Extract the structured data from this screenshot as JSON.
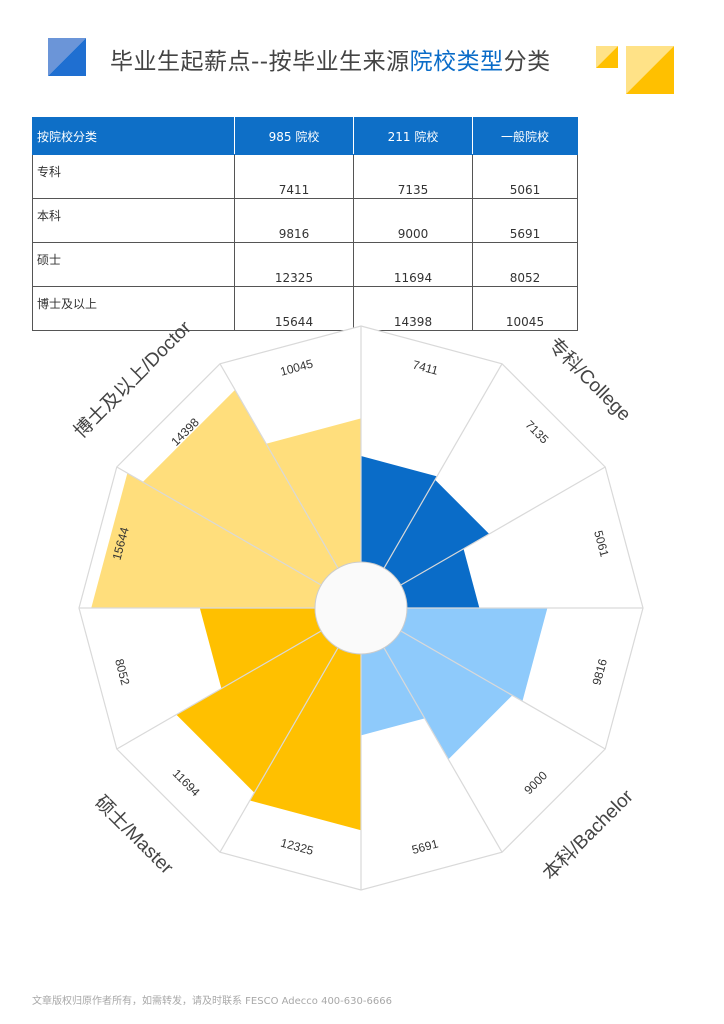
{
  "header": {
    "title_pre": "毕业生起薪点--按毕业生来源",
    "title_highlight": "院校类型",
    "title_post": "分类"
  },
  "colors": {
    "table_header": "#0e6fc7",
    "highlight_text": "#0a6cc8",
    "college": "#0a6cc8",
    "bachelor": "#8ecafb",
    "master": "#ffc000",
    "doctor": "#ffde7c",
    "deco_blue": "#1f6fd1",
    "deco_yellow": "#ffc000"
  },
  "table": {
    "headers": [
      "按院校分类",
      "985 院校",
      "211 院校",
      "一般院校"
    ],
    "rows": [
      {
        "category": "专科",
        "values": [
          "7411",
          "7135",
          "5061"
        ]
      },
      {
        "category": "本科",
        "values": [
          "9816",
          "9000",
          "5691"
        ]
      },
      {
        "category": "硕士",
        "values": [
          "12325",
          "11694",
          "8052"
        ]
      },
      {
        "category": "博士及以上",
        "values": [
          "15644",
          "14398",
          "10045"
        ]
      }
    ]
  },
  "chart_data": {
    "type": "polar-bar",
    "series": [
      {
        "group": "专科/College",
        "values": [
          7411,
          7135,
          5061
        ],
        "color": "#0a6cc8"
      },
      {
        "group": "本科/Bachelor",
        "values": [
          9816,
          9000,
          5691
        ],
        "color": "#8ecafb"
      },
      {
        "group": "硕士/Master",
        "values": [
          12325,
          11694,
          8052
        ],
        "color": "#ffc000"
      },
      {
        "group": "博士及以上/Doctor",
        "values": [
          15644,
          14398,
          10045
        ],
        "color": "#ffde7c"
      }
    ],
    "categories": [
      "985 院校",
      "211 院校",
      "一般院校"
    ],
    "rmax": 16500
  },
  "footer": {
    "text": "文章版权归原作者所有，如需转发，请及时联系 FESCO Adecco 400-630-6666"
  }
}
